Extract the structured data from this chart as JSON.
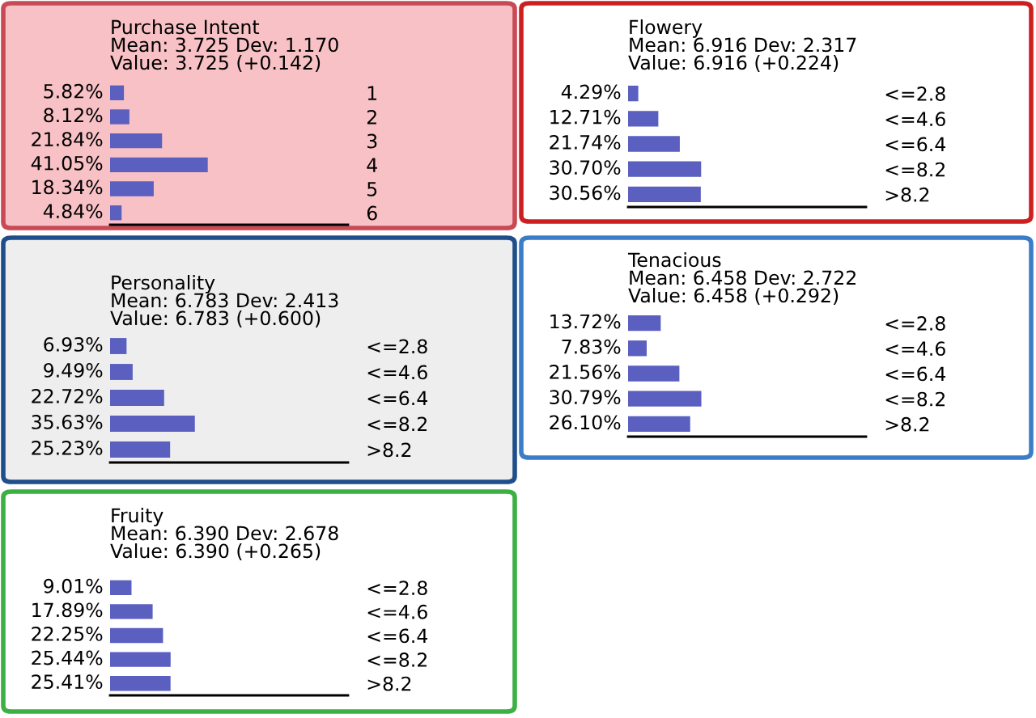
{
  "chart_data": [
    {
      "type": "bar",
      "orientation": "horizontal",
      "title": "Purchase Intent",
      "subtitle": "Mean: 3.725 Dev: 1.170",
      "annotations": [
        "Value: 3.725 (+0.142)"
      ],
      "categories": [
        "1",
        "2",
        "3",
        "4",
        "5",
        "6"
      ],
      "values": [
        5.82,
        8.12,
        21.84,
        41.05,
        18.34,
        4.84
      ],
      "value_labels": [
        "5.82%",
        "8.12%",
        "21.84%",
        "41.05%",
        "18.34%",
        "4.84%"
      ],
      "color": "#5a5fc0",
      "xlim": [
        0,
        100
      ]
    },
    {
      "type": "bar",
      "orientation": "horizontal",
      "title": "Flowery",
      "subtitle": "Mean: 6.916 Dev: 2.317",
      "annotations": [
        "Value: 6.916 (+0.224)"
      ],
      "categories": [
        "<=2.8",
        "<=4.6",
        "<=6.4",
        "<=8.2",
        ">8.2"
      ],
      "values": [
        4.29,
        12.71,
        21.74,
        30.7,
        30.56
      ],
      "value_labels": [
        "4.29%",
        "12.71%",
        "21.74%",
        "30.70%",
        "30.56%"
      ],
      "color": "#5a5fc0",
      "xlim": [
        0,
        100
      ]
    },
    {
      "type": "bar",
      "orientation": "horizontal",
      "title": "Personality",
      "subtitle": "Mean: 6.783 Dev: 2.413",
      "annotations": [
        "Value: 6.783 (+0.600)"
      ],
      "categories": [
        "<=2.8",
        "<=4.6",
        "<=6.4",
        "<=8.2",
        ">8.2"
      ],
      "values": [
        6.93,
        9.49,
        22.72,
        35.63,
        25.23
      ],
      "value_labels": [
        "6.93%",
        "9.49%",
        "22.72%",
        "35.63%",
        "25.23%"
      ],
      "color": "#5a5fc0",
      "xlim": [
        0,
        100
      ]
    },
    {
      "type": "bar",
      "orientation": "horizontal",
      "title": "Tenacious",
      "subtitle": "Mean: 6.458 Dev: 2.722",
      "annotations": [
        "Value: 6.458 (+0.292)"
      ],
      "categories": [
        "<=2.8",
        "<=4.6",
        "<=6.4",
        "<=8.2",
        ">8.2"
      ],
      "values": [
        13.72,
        7.83,
        21.56,
        30.79,
        26.1
      ],
      "value_labels": [
        "13.72%",
        "7.83%",
        "21.56%",
        "30.79%",
        "26.10%"
      ],
      "color": "#5a5fc0",
      "xlim": [
        0,
        100
      ]
    },
    {
      "type": "bar",
      "orientation": "horizontal",
      "title": "Fruity",
      "subtitle": "Mean: 6.390 Dev: 2.678",
      "annotations": [
        "Value: 6.390 (+0.265)"
      ],
      "categories": [
        "<=2.8",
        "<=4.6",
        "<=6.4",
        "<=8.2",
        ">8.2"
      ],
      "values": [
        9.01,
        17.89,
        22.25,
        25.44,
        25.41
      ],
      "value_labels": [
        "9.01%",
        "17.89%",
        "22.25%",
        "25.44%",
        "25.41%"
      ],
      "color": "#5a5fc0",
      "xlim": [
        0,
        100
      ]
    }
  ]
}
